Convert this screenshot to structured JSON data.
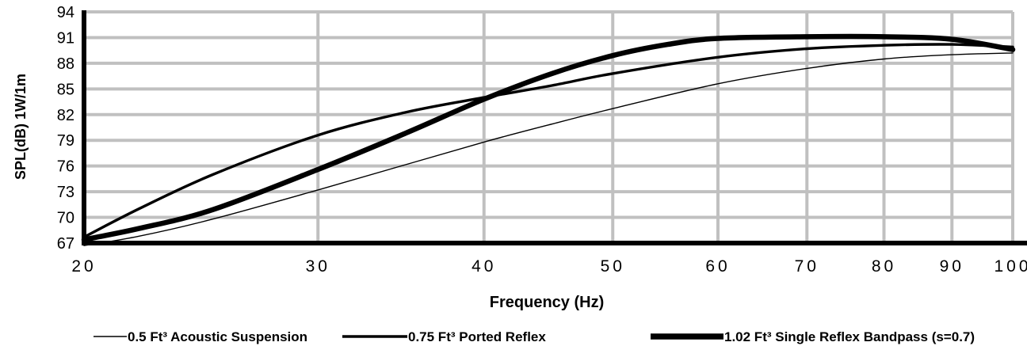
{
  "chart_data": {
    "type": "line",
    "title": "",
    "xlabel": "Frequency (Hz)",
    "ylabel": "SPL(dB) 1W/1m",
    "x_scale": "log",
    "xlim": [
      20,
      100
    ],
    "ylim": [
      67,
      94
    ],
    "x_ticks": [
      20,
      30,
      40,
      50,
      60,
      70,
      80,
      90,
      100
    ],
    "x_tick_labels": [
      "20",
      "30",
      "40",
      "50",
      "60",
      "70",
      "80",
      "90",
      "100"
    ],
    "y_ticks": [
      67,
      70,
      73,
      76,
      79,
      82,
      85,
      88,
      91,
      94
    ],
    "y_tick_labels": [
      "67",
      "70",
      "73",
      "76",
      "79",
      "82",
      "85",
      "88",
      "91",
      "94"
    ],
    "grid": true,
    "legend_position": "bottom",
    "series_color": "#000000",
    "grid_color": "#c0c0c0",
    "series": [
      {
        "name": "0.5 Ft³ Acoustic Suspension",
        "line_weight": "thin",
        "x": [
          20,
          22,
          25,
          30,
          35,
          40,
          45,
          50,
          60,
          70,
          80,
          90,
          100
        ],
        "y": [
          66.7,
          67.8,
          69.8,
          73.2,
          76.2,
          78.8,
          80.9,
          82.7,
          85.6,
          87.4,
          88.5,
          89.0,
          89.2
        ]
      },
      {
        "name": "0.75 Ft³ Ported Reflex",
        "line_weight": "medium",
        "x": [
          20,
          22,
          25,
          30,
          35,
          40,
          45,
          50,
          60,
          70,
          80,
          90,
          100
        ],
        "y": [
          67.7,
          71.0,
          75.0,
          79.6,
          82.3,
          84.0,
          85.4,
          86.8,
          88.7,
          89.7,
          90.1,
          90.2,
          89.9
        ]
      },
      {
        "name": "1.02 Ft³ Single Reflex Bandpass (s=0.7)",
        "line_weight": "thick",
        "x": [
          20,
          22,
          25,
          30,
          35,
          40,
          45,
          50,
          55,
          60,
          70,
          80,
          90,
          100
        ],
        "y": [
          67.4,
          68.7,
          70.9,
          75.6,
          79.9,
          83.8,
          86.8,
          88.9,
          90.2,
          90.9,
          91.1,
          91.1,
          90.8,
          89.6
        ]
      }
    ]
  }
}
